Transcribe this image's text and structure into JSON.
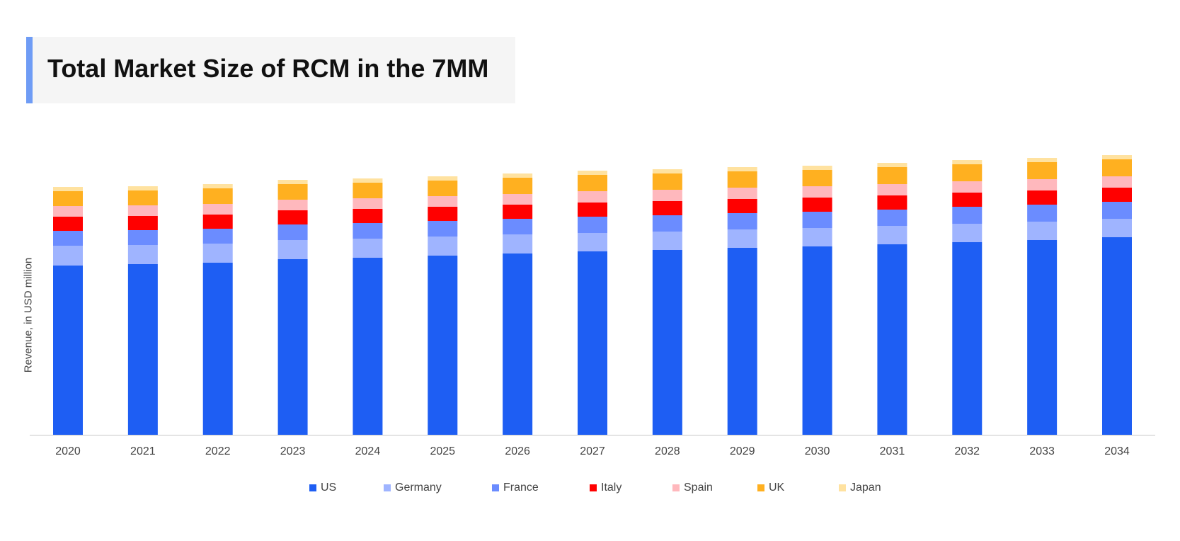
{
  "title": "Total Market Size of RCM in the 7MM",
  "chart_data": {
    "type": "bar",
    "stacked": true,
    "title": "Total Market Size of RCM in the 7MM",
    "xlabel": "",
    "ylabel": "Revenue, in USD million",
    "ylim": [
      0,
      400
    ],
    "grid": false,
    "legend_position": "bottom",
    "categories": [
      "2020",
      "2021",
      "2022",
      "2023",
      "2024",
      "2025",
      "2026",
      "2027",
      "2028",
      "2029",
      "2030",
      "2031",
      "2032",
      "2033",
      "2034"
    ],
    "series": [
      {
        "name": "US",
        "color": "#1e5ef3",
        "values": [
          239,
          241,
          243,
          248,
          250,
          253,
          256,
          259,
          261,
          264,
          266,
          269,
          272,
          275,
          279
        ]
      },
      {
        "name": "Germany",
        "color": "#9fb4ff",
        "values": [
          28,
          27,
          27,
          27,
          27,
          27,
          27,
          26,
          26,
          26,
          26,
          26,
          26,
          26,
          26
        ]
      },
      {
        "name": "France",
        "color": "#6b8cff",
        "values": [
          21,
          21,
          21,
          22,
          22,
          22,
          22,
          23,
          23,
          23,
          23,
          23,
          24,
          24,
          24
        ]
      },
      {
        "name": "Italy",
        "color": "#ff0000",
        "values": [
          20,
          20,
          20,
          20,
          20,
          20,
          20,
          20,
          20,
          20,
          20,
          20,
          20,
          20,
          20
        ]
      },
      {
        "name": "Spain",
        "color": "#ffb8bd",
        "values": [
          15,
          15,
          15,
          15,
          15,
          15,
          15,
          16,
          16,
          16,
          16,
          16,
          16,
          16,
          16
        ]
      },
      {
        "name": "UK",
        "color": "#ffb020",
        "values": [
          21,
          21,
          22,
          22,
          22,
          22,
          23,
          23,
          23,
          23,
          23,
          24,
          24,
          24,
          24
        ]
      },
      {
        "name": "Japan",
        "color": "#ffe2a0",
        "values": [
          6,
          6,
          6,
          6,
          6,
          6,
          6,
          6,
          6,
          6,
          6,
          6,
          6,
          6,
          6
        ]
      }
    ]
  }
}
